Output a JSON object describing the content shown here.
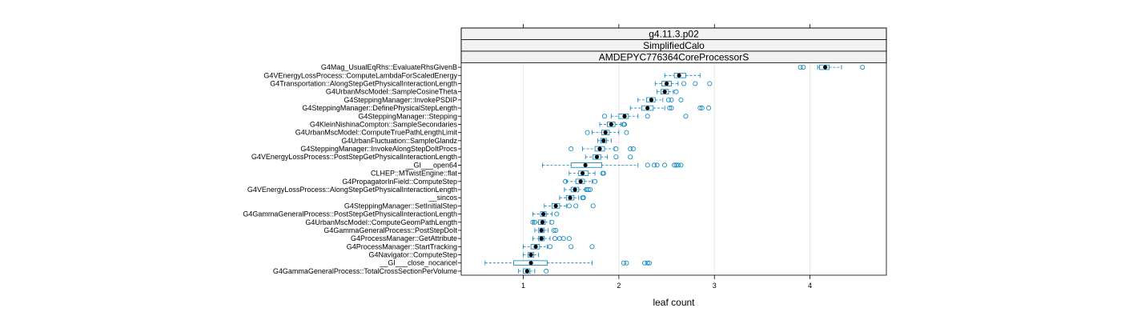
{
  "chart_data": {
    "type": "boxplot",
    "xlabel": "leaf count",
    "ylabel": "",
    "xlim": [
      0.35,
      4.8
    ],
    "xticks": [
      1,
      2,
      3,
      4
    ],
    "grid": "vertical",
    "strips": [
      "g4.11.3.p02",
      "SimplifiedCalo",
      "AMDEPYC776364CoreProcessorS"
    ],
    "colors": {
      "box": "#0080c0",
      "median": "#000000",
      "grid": "#e6e6e6",
      "strip": "#f2f2f2"
    },
    "categories": [
      {
        "name": "G4Mag_UsualEqRhs::EvaluateRhsGivenB",
        "lw": 4.08,
        "q1": 4.1,
        "med": 4.16,
        "q3": 4.2,
        "uw": 4.33,
        "out": [
          3.9,
          3.93,
          4.55
        ]
      },
      {
        "name": "G4VEnergyLossProcess::ComputeLambdaForScaledEnergy",
        "lw": 2.48,
        "q1": 2.58,
        "med": 2.63,
        "q3": 2.7,
        "uw": 2.85,
        "out": []
      },
      {
        "name": "G4Transportation::AlongStepGetPhysicalInteractionLength",
        "lw": 2.38,
        "q1": 2.45,
        "med": 2.5,
        "q3": 2.55,
        "uw": 2.62,
        "out": [
          2.68,
          2.8,
          2.95
        ]
      },
      {
        "name": "G4UrbanMscModel::SampleCosineTheta",
        "lw": 2.4,
        "q1": 2.44,
        "med": 2.48,
        "q3": 2.52,
        "uw": 2.57,
        "out": [
          2.6
        ]
      },
      {
        "name": "G4SteppingManager::InvokePSDIP",
        "lw": 2.2,
        "q1": 2.29,
        "med": 2.34,
        "q3": 2.38,
        "uw": 2.46,
        "out": [
          2.52,
          2.55,
          2.65
        ]
      },
      {
        "name": "G4SteppingManager::DefinePhysicalStepLength",
        "lw": 2.12,
        "q1": 2.24,
        "med": 2.3,
        "q3": 2.36,
        "uw": 2.48,
        "out": [
          2.53,
          2.55,
          2.85,
          2.87,
          2.94
        ]
      },
      {
        "name": "G4SteppingManager::Stepping",
        "lw": 1.92,
        "q1": 2.0,
        "med": 2.06,
        "q3": 2.1,
        "uw": 2.2,
        "out": [
          1.85,
          2.3,
          2.7
        ]
      },
      {
        "name": "G4KleinNishinaCompton::SampleSecondaries",
        "lw": 1.8,
        "q1": 1.88,
        "med": 1.92,
        "q3": 1.96,
        "uw": 2.02,
        "out": [
          2.05,
          2.06
        ]
      },
      {
        "name": "G4UrbanMscModel::ComputeTruePathLengthLimit",
        "lw": 1.72,
        "q1": 1.82,
        "med": 1.86,
        "q3": 1.9,
        "uw": 2.0,
        "out": [
          1.67,
          2.08
        ]
      },
      {
        "name": "G4UrbanFluctuation::SampleGlandz",
        "lw": 1.78,
        "q1": 1.81,
        "med": 1.84,
        "q3": 1.87,
        "uw": 1.92,
        "out": []
      },
      {
        "name": "G4SteppingManager::InvokeAlongStepDoItProcs",
        "lw": 1.62,
        "q1": 1.75,
        "med": 1.8,
        "q3": 1.85,
        "uw": 1.95,
        "out": [
          1.5,
          1.97,
          2.12,
          2.15
        ]
      },
      {
        "name": "G4VEnergyLossProcess::PostStepGetPhysicalInteractionLength",
        "lw": 1.65,
        "q1": 1.73,
        "med": 1.77,
        "q3": 1.81,
        "uw": 1.88,
        "out": [
          1.97,
          2.12
        ]
      },
      {
        "name": "__GI___open64",
        "lw": 1.2,
        "q1": 1.5,
        "med": 1.65,
        "q3": 1.82,
        "uw": 2.2,
        "out": [
          2.3,
          2.37,
          2.4,
          2.48,
          2.58,
          2.6,
          2.62,
          2.65
        ]
      },
      {
        "name": "CLHEP::MTwistEngine::flat",
        "lw": 1.48,
        "q1": 1.58,
        "med": 1.62,
        "q3": 1.68,
        "uw": 1.75,
        "out": [
          1.83,
          1.84
        ]
      },
      {
        "name": "G4PropagatorInField::ComputeStep",
        "lw": 1.45,
        "q1": 1.55,
        "med": 1.6,
        "q3": 1.64,
        "uw": 1.72,
        "out": [
          1.44,
          1.75
        ]
      },
      {
        "name": "G4VEnergyLossProcess::AlongStepGetPhysicalInteractionLength",
        "lw": 1.43,
        "q1": 1.5,
        "med": 1.54,
        "q3": 1.58,
        "uw": 1.65,
        "out": [
          1.66,
          1.68,
          1.7
        ]
      },
      {
        "name": "__sincos",
        "lw": 1.38,
        "q1": 1.45,
        "med": 1.49,
        "q3": 1.53,
        "uw": 1.58,
        "out": [
          1.62,
          1.63
        ]
      },
      {
        "name": "G4SteppingManager::SetInitialStep",
        "lw": 1.22,
        "q1": 1.3,
        "med": 1.34,
        "q3": 1.38,
        "uw": 1.45,
        "out": [
          1.48,
          1.55,
          1.73
        ]
      },
      {
        "name": "G4GammaGeneralProcess::PostStepGetPhysicalInteractionLength",
        "lw": 1.1,
        "q1": 1.18,
        "med": 1.21,
        "q3": 1.24,
        "uw": 1.3,
        "out": [
          1.35
        ]
      },
      {
        "name": "G4UrbanMscModel::ComputeGeomPathLength",
        "lw": 1.1,
        "q1": 1.16,
        "med": 1.2,
        "q3": 1.23,
        "uw": 1.28,
        "out": [
          1.1,
          1.12,
          1.3
        ]
      },
      {
        "name": "G4GammaGeneralProcess::PostStepDoIt",
        "lw": 1.12,
        "q1": 1.16,
        "med": 1.19,
        "q3": 1.22,
        "uw": 1.26,
        "out": [
          1.32,
          1.34
        ]
      },
      {
        "name": "G4ProcessManager::GetAttribute",
        "lw": 1.1,
        "q1": 1.16,
        "med": 1.19,
        "q3": 1.22,
        "uw": 1.28,
        "out": [
          1.33,
          1.38,
          1.42,
          1.48
        ]
      },
      {
        "name": "G4ProcessManager::StartTracking",
        "lw": 1.0,
        "q1": 1.08,
        "med": 1.13,
        "q3": 1.17,
        "uw": 1.25,
        "out": [
          1.28,
          1.5,
          1.72
        ]
      },
      {
        "name": "G4Navigator::ComputeStep",
        "lw": 1.0,
        "q1": 1.05,
        "med": 1.08,
        "q3": 1.11,
        "uw": 1.16,
        "out": []
      },
      {
        "name": "__GI___close_nocancel",
        "lw": 0.6,
        "q1": 0.9,
        "med": 1.08,
        "q3": 1.25,
        "uw": 1.72,
        "out": [
          2.05,
          2.08,
          2.27,
          2.3,
          2.32
        ]
      },
      {
        "name": "G4GammaGeneralProcess::TotalCrossSectionPerVolume",
        "lw": 0.95,
        "q1": 1.0,
        "med": 1.04,
        "q3": 1.07,
        "uw": 1.12,
        "out": [
          1.24
        ]
      }
    ]
  }
}
